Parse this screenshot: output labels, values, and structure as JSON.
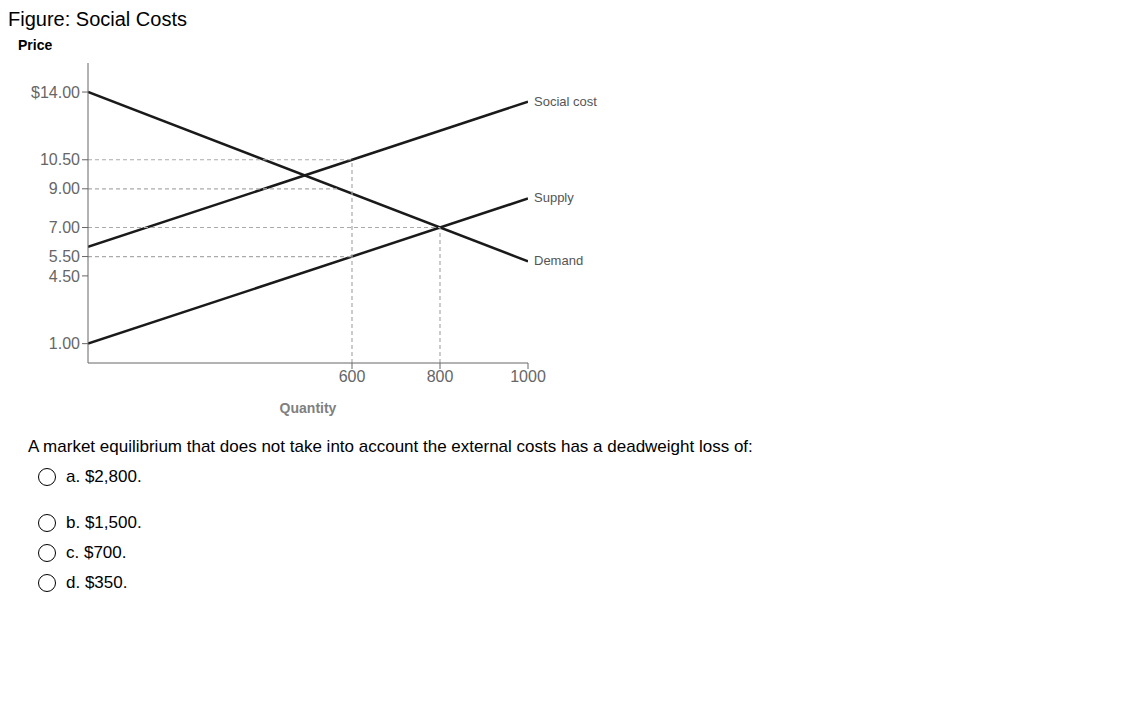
{
  "chart_data": {
    "type": "line",
    "title": "Figure: Social Costs",
    "x_label": "Quantity",
    "y_label": "Price",
    "xlim": [
      0,
      1000
    ],
    "xticks": [
      600,
      800,
      1000
    ],
    "ylim": [
      0,
      15.5
    ],
    "yticks": [
      {
        "value": 1.0,
        "label": "1.00"
      },
      {
        "value": 4.5,
        "label": "4.50"
      },
      {
        "value": 5.5,
        "label": "5.50"
      },
      {
        "value": 7.0,
        "label": "7.00"
      },
      {
        "value": 9.0,
        "label": "9.00"
      },
      {
        "value": 10.5,
        "label": "10.50"
      },
      {
        "value": 14.0,
        "label": "$14.00"
      }
    ],
    "grid": false,
    "series": [
      {
        "name": "Demand",
        "color": "#1a1a1a",
        "line_style": "solid",
        "x": [
          0,
          1000
        ],
        "values": [
          14.0,
          5.25
        ]
      },
      {
        "name": "Supply",
        "color": "#1a1a1a",
        "line_style": "solid",
        "x": [
          0,
          1000
        ],
        "values": [
          1.0,
          8.5
        ]
      },
      {
        "name": "Social cost",
        "color": "#1a1a1a",
        "line_style": "solid",
        "x": [
          0,
          1000
        ],
        "values": [
          6.0,
          13.5
        ]
      },
      {
        "color": "#aaaaaa",
        "line_style": "dashed",
        "x": [
          0,
          600
        ],
        "values": [
          10.5,
          10.5
        ]
      },
      {
        "color": "#aaaaaa",
        "line_style": "dashed",
        "x": [
          0,
          571.4285714285714
        ],
        "values": [
          9.0,
          9.0
        ]
      },
      {
        "color": "#aaaaaa",
        "line_style": "dashed",
        "x": [
          0,
          800
        ],
        "values": [
          7.0,
          7.0
        ]
      },
      {
        "color": "#aaaaaa",
        "line_style": "dashed",
        "x": [
          0,
          600
        ],
        "values": [
          5.5,
          5.5
        ]
      },
      {
        "color": "#aaaaaa",
        "line_style": "dashed",
        "x": [
          600,
          600
        ],
        "values": [
          0,
          10.5
        ]
      },
      {
        "color": "#aaaaaa",
        "line_style": "dashed",
        "x": [
          800,
          800
        ],
        "values": [
          0,
          7.0
        ]
      }
    ],
    "question": "A market equilibrium that does not take into account the external costs has a deadweight loss of:",
    "choices": [
      "a. $2,800.",
      "b. $1,500.",
      "c. $700.",
      "d. $350."
    ]
  }
}
